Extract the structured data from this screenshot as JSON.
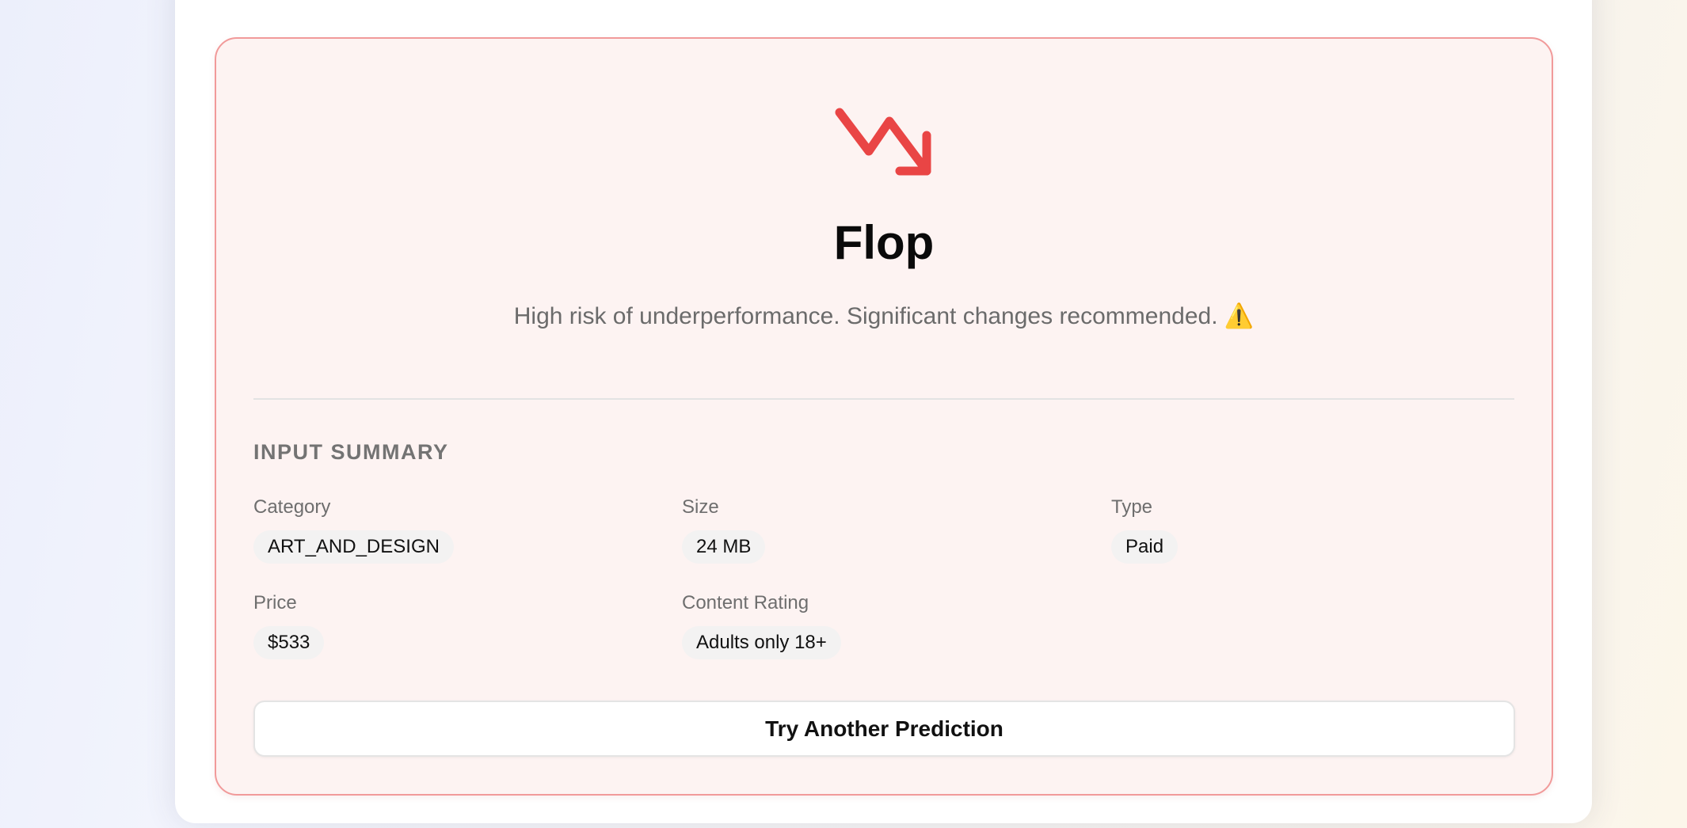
{
  "result": {
    "icon": "trending-down-icon",
    "accent_color": "#e94545",
    "title": "Flop",
    "message": "High risk of underperformance. Significant changes recommended.",
    "message_icon": "⚠️"
  },
  "summary": {
    "heading": "INPUT SUMMARY",
    "fields": [
      {
        "label": "Category",
        "value": "ART_AND_DESIGN"
      },
      {
        "label": "Size",
        "value": "24 MB"
      },
      {
        "label": "Type",
        "value": "Paid"
      },
      {
        "label": "Price",
        "value": "$533"
      },
      {
        "label": "Content Rating",
        "value": "Adults only 18+"
      }
    ]
  },
  "actions": {
    "retry_label": "Try Another Prediction"
  }
}
